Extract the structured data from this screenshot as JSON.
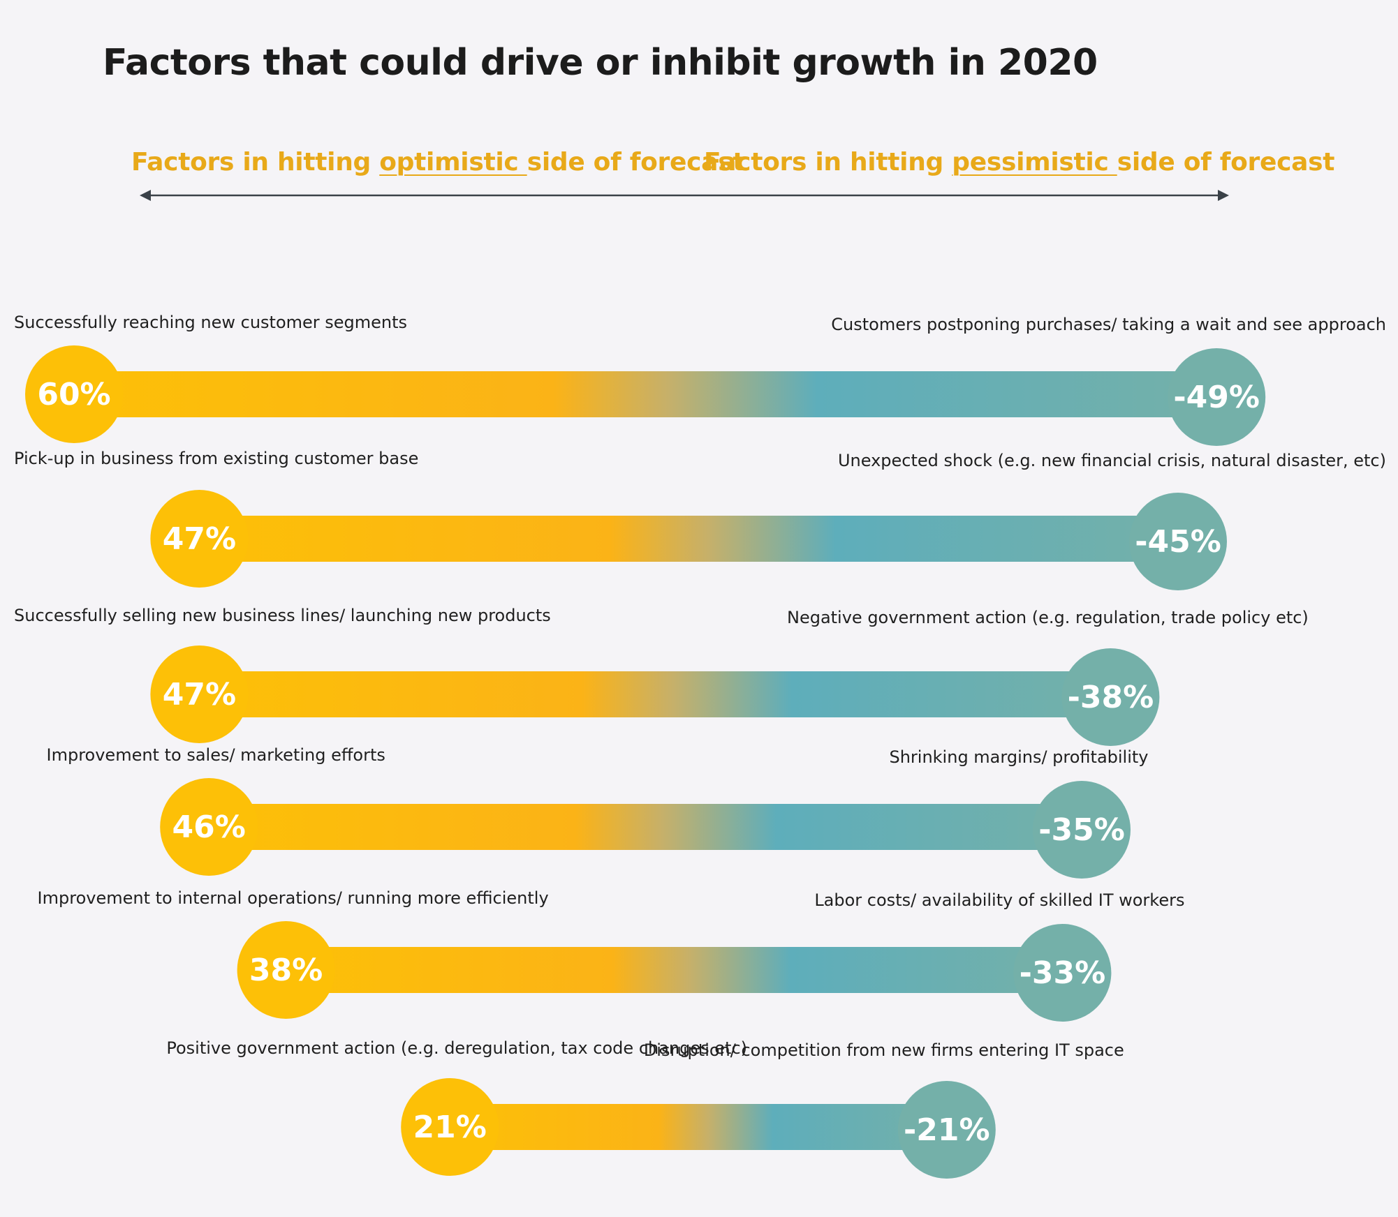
{
  "chart_data": {
    "type": "bar",
    "title": "Factors that could drive or inhibit growth in 2020",
    "headers": {
      "optimistic": {
        "pre": "Factors in hitting ",
        "keyword": "optimistic ",
        "post": "side of forecast"
      },
      "pessimistic": {
        "pre": "Factors in hitting ",
        "keyword": "pessimistic ",
        "post": "side of forecast"
      }
    },
    "rows": [
      {
        "positive_label": "Successfully reaching new customer segments",
        "positive_value": 60,
        "positive_text": "60%",
        "negative_label": "Customers postponing purchases/ taking a wait and see approach",
        "negative_value": -49,
        "negative_text": "-49%"
      },
      {
        "positive_label": "Pick-up in business from existing customer base",
        "positive_value": 47,
        "positive_text": "47%",
        "negative_label": "Unexpected shock (e.g. new financial crisis, natural disaster, etc)",
        "negative_value": -45,
        "negative_text": "-45%"
      },
      {
        "positive_label": "Successfully selling new business lines/ launching new products",
        "positive_value": 47,
        "positive_text": "47%",
        "negative_label": "Negative government action (e.g. regulation, trade policy etc)",
        "negative_value": -38,
        "negative_text": "-38%"
      },
      {
        "positive_label": "Improvement to sales/ marketing efforts",
        "positive_value": 46,
        "positive_text": "46%",
        "negative_label": "Shrinking margins/ profitability",
        "negative_value": -35,
        "negative_text": "-35%"
      },
      {
        "positive_label": "Improvement to internal operations/ running more efficiently",
        "positive_value": 38,
        "positive_text": "38%",
        "negative_label": "Labor costs/ availability of skilled IT workers",
        "negative_value": -33,
        "negative_text": "-33%"
      },
      {
        "positive_label": "Positive government action (e.g. deregulation, tax code changes etc)",
        "positive_value": 21,
        "positive_text": "21%",
        "negative_label": "Disruption/ competition from new firms entering IT space",
        "negative_value": -21,
        "negative_text": "-21%"
      }
    ],
    "colors": {
      "positive": "#fdc007",
      "positive_mid": "#fbb317",
      "negative_mid": "#5eaebb",
      "negative": "#74b0a9",
      "arrow": "#3a4148"
    }
  }
}
